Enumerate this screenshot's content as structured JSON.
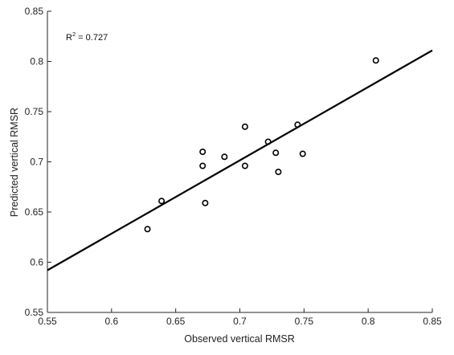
{
  "chart_data": {
    "type": "scatter",
    "title": "",
    "xlabel": "Observed vertical RMSR",
    "ylabel": "Predicted vertical RMSR",
    "xlim": [
      0.55,
      0.85
    ],
    "ylim": [
      0.55,
      0.85
    ],
    "x_ticks": [
      0.55,
      0.6,
      0.65,
      0.7,
      0.75,
      0.8,
      0.85
    ],
    "y_ticks": [
      0.55,
      0.6,
      0.65,
      0.7,
      0.75,
      0.8,
      0.85
    ],
    "x_tick_labels": [
      "0.55",
      "0.6",
      "0.65",
      "0.7",
      "0.75",
      "0.8",
      "0.85"
    ],
    "y_tick_labels": [
      "0.55",
      "0.6",
      "0.65",
      "0.7",
      "0.75",
      "0.8",
      "0.85"
    ],
    "grid": false,
    "legend": "none",
    "annotation": {
      "base": "R",
      "sup": "2",
      "rest": " = 0.727"
    },
    "points": [
      {
        "x": 0.628,
        "y": 0.633
      },
      {
        "x": 0.639,
        "y": 0.661
      },
      {
        "x": 0.671,
        "y": 0.71
      },
      {
        "x": 0.671,
        "y": 0.696
      },
      {
        "x": 0.673,
        "y": 0.659
      },
      {
        "x": 0.688,
        "y": 0.705
      },
      {
        "x": 0.704,
        "y": 0.735
      },
      {
        "x": 0.704,
        "y": 0.696
      },
      {
        "x": 0.722,
        "y": 0.72
      },
      {
        "x": 0.728,
        "y": 0.709
      },
      {
        "x": 0.73,
        "y": 0.69
      },
      {
        "x": 0.745,
        "y": 0.737
      },
      {
        "x": 0.749,
        "y": 0.708
      },
      {
        "x": 0.806,
        "y": 0.801
      }
    ],
    "fit_line": {
      "x": [
        0.55,
        0.85
      ],
      "y": [
        0.592,
        0.811
      ]
    },
    "colors": {
      "marker": "#000000",
      "fit_line": "#000000",
      "axis": "#262626"
    }
  }
}
